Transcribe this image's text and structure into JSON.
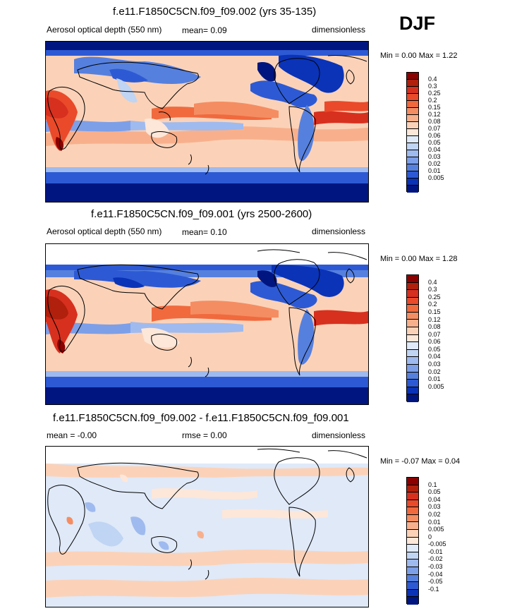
{
  "season": "DJF",
  "panels": [
    {
      "id": "top",
      "title": "f.e11.F1850C5CN.f09_f09.002 (yrs 35-135)",
      "left_label": "Aerosol optical depth (550 nm)",
      "center_label": "mean=  0.09",
      "right_label": "dimensionless",
      "minmax": "Min =   0.00 Max =   1.22",
      "colorbar": {
        "labels": [
          "0.4",
          "0.3",
          "0.25",
          "0.2",
          "0.15",
          "0.12",
          "0.08",
          "0.07",
          "0.06",
          "0.05",
          "0.04",
          "0.03",
          "0.02",
          "0.01",
          "0.005"
        ],
        "colors": [
          "#8b0000",
          "#b0200c",
          "#d7301f",
          "#ea4a2a",
          "#f06a3e",
          "#f58d62",
          "#f8b08c",
          "#fbd2b8",
          "#fde7d9",
          "#dfe9f8",
          "#c0d4f3",
          "#9fbaee",
          "#7d9fe8",
          "#5680de",
          "#2d5ad4",
          "#0a33b8",
          "#00157f"
        ]
      }
    },
    {
      "id": "middle",
      "title": "f.e11.F1850C5CN.f09_f09.001 (yrs 2500-2600)",
      "left_label": "Aerosol optical depth (550 nm)",
      "center_label": "mean=  0.10",
      "right_label": "dimensionless",
      "minmax": "Min =   0.00 Max =   1.28",
      "colorbar": {
        "labels": [
          "0.4",
          "0.3",
          "0.25",
          "0.2",
          "0.15",
          "0.12",
          "0.08",
          "0.07",
          "0.06",
          "0.05",
          "0.04",
          "0.03",
          "0.02",
          "0.01",
          "0.005"
        ],
        "colors": [
          "#8b0000",
          "#b0200c",
          "#d7301f",
          "#ea4a2a",
          "#f06a3e",
          "#f58d62",
          "#f8b08c",
          "#fbd2b8",
          "#fde7d9",
          "#dfe9f8",
          "#c0d4f3",
          "#9fbaee",
          "#7d9fe8",
          "#5680de",
          "#2d5ad4",
          "#0a33b8",
          "#00157f"
        ]
      }
    },
    {
      "id": "bottom",
      "title": "f.e11.F1850C5CN.f09_f09.002 - f.e11.F1850C5CN.f09_f09.001",
      "left_label": "mean =  -0.00",
      "center_label": "rmse =   0.00",
      "right_label": "dimensionless",
      "minmax": "Min =  -0.07 Max =   0.04",
      "colorbar": {
        "labels": [
          "0.1",
          "0.05",
          "0.04",
          "0.03",
          "0.02",
          "0.01",
          "0.005",
          "0",
          "-0.005",
          "-0.01",
          "-0.02",
          "-0.03",
          "-0.04",
          "-0.05",
          "-0.1"
        ],
        "colors": [
          "#8b0000",
          "#b0200c",
          "#d7301f",
          "#ea4a2a",
          "#f06a3e",
          "#f58d62",
          "#f8b08c",
          "#fbd2b8",
          "#fde7d9",
          "#dfe9f8",
          "#c0d4f3",
          "#9fbaee",
          "#7d9fe8",
          "#5680de",
          "#2d5ad4",
          "#0a33b8",
          "#00157f"
        ]
      }
    }
  ]
}
